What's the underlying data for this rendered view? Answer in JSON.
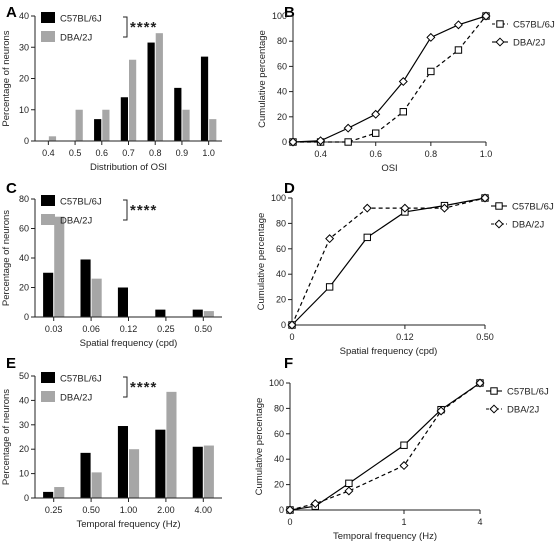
{
  "colors": {
    "c57": "#000000",
    "dba": "#a6a6a6",
    "axis": "#222222"
  },
  "chart_data": [
    {
      "panel": "A",
      "type": "bar",
      "categories": [
        "0.4",
        "0.5",
        "0.6",
        "0.7",
        "0.8",
        "0.9",
        "1.0"
      ],
      "series": [
        {
          "name": "C57BL/6J",
          "values": [
            0,
            0,
            7,
            14,
            31.5,
            17,
            27
          ]
        },
        {
          "name": "DBA/2J",
          "values": [
            1.5,
            10,
            10,
            26,
            34.5,
            10,
            7
          ]
        }
      ],
      "xlabel": "Distribution of OSI",
      "ylabel": "Percentage of neurons",
      "ylim": [
        0,
        40
      ],
      "yticks": [
        "0",
        "10",
        "20",
        "30",
        "40"
      ],
      "significance": "****",
      "legend": "top-left"
    },
    {
      "panel": "B",
      "type": "line",
      "xlim": [
        0.3,
        1.0
      ],
      "xticks": [
        "0.4",
        "0.6",
        "0.8",
        "1.0"
      ],
      "ylim": [
        0,
        100
      ],
      "yticks": [
        "0",
        "20",
        "40",
        "60",
        "80",
        "100"
      ],
      "xlabel": "OSI",
      "ylabel": "Cumulative percentage",
      "series": [
        {
          "name": "C57BL/6J",
          "marker": "square",
          "dashed": true,
          "x": [
            0.3,
            0.4,
            0.5,
            0.6,
            0.7,
            0.8,
            0.9,
            1.0
          ],
          "y": [
            0,
            0,
            0,
            7,
            24,
            56,
            73,
            100
          ]
        },
        {
          "name": "DBA/2J",
          "marker": "diamond",
          "dashed": false,
          "x": [
            0.3,
            0.4,
            0.5,
            0.6,
            0.7,
            0.8,
            0.9,
            1.0
          ],
          "y": [
            0,
            1,
            11,
            22,
            48,
            83,
            93,
            100
          ]
        }
      ],
      "legend": "top-right"
    },
    {
      "panel": "C",
      "type": "bar",
      "categories": [
        "0.03",
        "0.06",
        "0.12",
        "0.25",
        "0.50"
      ],
      "series": [
        {
          "name": "C57BL/6J",
          "values": [
            30,
            39,
            20,
            5,
            5
          ]
        },
        {
          "name": "DBA/2J",
          "values": [
            68,
            26,
            0,
            0,
            4
          ]
        }
      ],
      "xlabel": "Spatial frequency (cpd)",
      "ylabel": "Percentage of neurons",
      "ylim": [
        0,
        80
      ],
      "yticks": [
        "0",
        "20",
        "40",
        "60",
        "80"
      ],
      "significance": "****",
      "legend": "top-left"
    },
    {
      "panel": "D",
      "type": "line",
      "xticks": [
        "0",
        "0.12",
        "0.50"
      ],
      "ylim": [
        0,
        100
      ],
      "yticks": [
        "0",
        "20",
        "40",
        "60",
        "80",
        "100"
      ],
      "xlabel": "Spatial frequency (cpd)",
      "ylabel": "Cumulative percentage",
      "series": [
        {
          "name": "C57BL/6J",
          "marker": "square",
          "dashed": false,
          "x": [
            0,
            0.03,
            0.06,
            0.12,
            0.25,
            0.5
          ],
          "y": [
            0,
            30,
            69,
            89,
            94,
            100
          ]
        },
        {
          "name": "DBA/2J",
          "marker": "diamond",
          "dashed": true,
          "x": [
            0,
            0.03,
            0.06,
            0.12,
            0.25,
            0.5
          ],
          "y": [
            0,
            68,
            92,
            92,
            92,
            100
          ]
        }
      ],
      "legend": "top-right"
    },
    {
      "panel": "E",
      "type": "bar",
      "categories": [
        "0.25",
        "0.50",
        "1.00",
        "2.00",
        "4.00"
      ],
      "series": [
        {
          "name": "C57BL/6J",
          "values": [
            2.5,
            18.5,
            29.5,
            28,
            21
          ]
        },
        {
          "name": "DBA/2J",
          "values": [
            4.5,
            10.5,
            20,
            43.5,
            21.5
          ]
        }
      ],
      "xlabel": "Temporal frequency (Hz)",
      "ylabel": "Percentage of neurons",
      "ylim": [
        0,
        50
      ],
      "yticks": [
        "0",
        "10",
        "20",
        "30",
        "40",
        "50"
      ],
      "significance": "****",
      "legend": "top-left"
    },
    {
      "panel": "F",
      "type": "line",
      "xticks": [
        "0",
        "1",
        "4"
      ],
      "ylim": [
        0,
        100
      ],
      "yticks": [
        "0",
        "20",
        "40",
        "60",
        "80",
        "100"
      ],
      "xlabel": "Temporal frequency (Hz)",
      "ylabel": "Cumulative percentage",
      "series": [
        {
          "name": "C57BL/6J",
          "marker": "square",
          "dashed": false,
          "x": [
            0,
            0.25,
            0.5,
            1,
            2,
            4
          ],
          "y": [
            0,
            3,
            21,
            51,
            79,
            100
          ]
        },
        {
          "name": "DBA/2J",
          "marker": "diamond",
          "dashed": true,
          "x": [
            0,
            0.25,
            0.5,
            1,
            2,
            4
          ],
          "y": [
            0,
            5,
            15,
            35,
            78,
            100
          ]
        }
      ],
      "legend": "top-right"
    }
  ]
}
